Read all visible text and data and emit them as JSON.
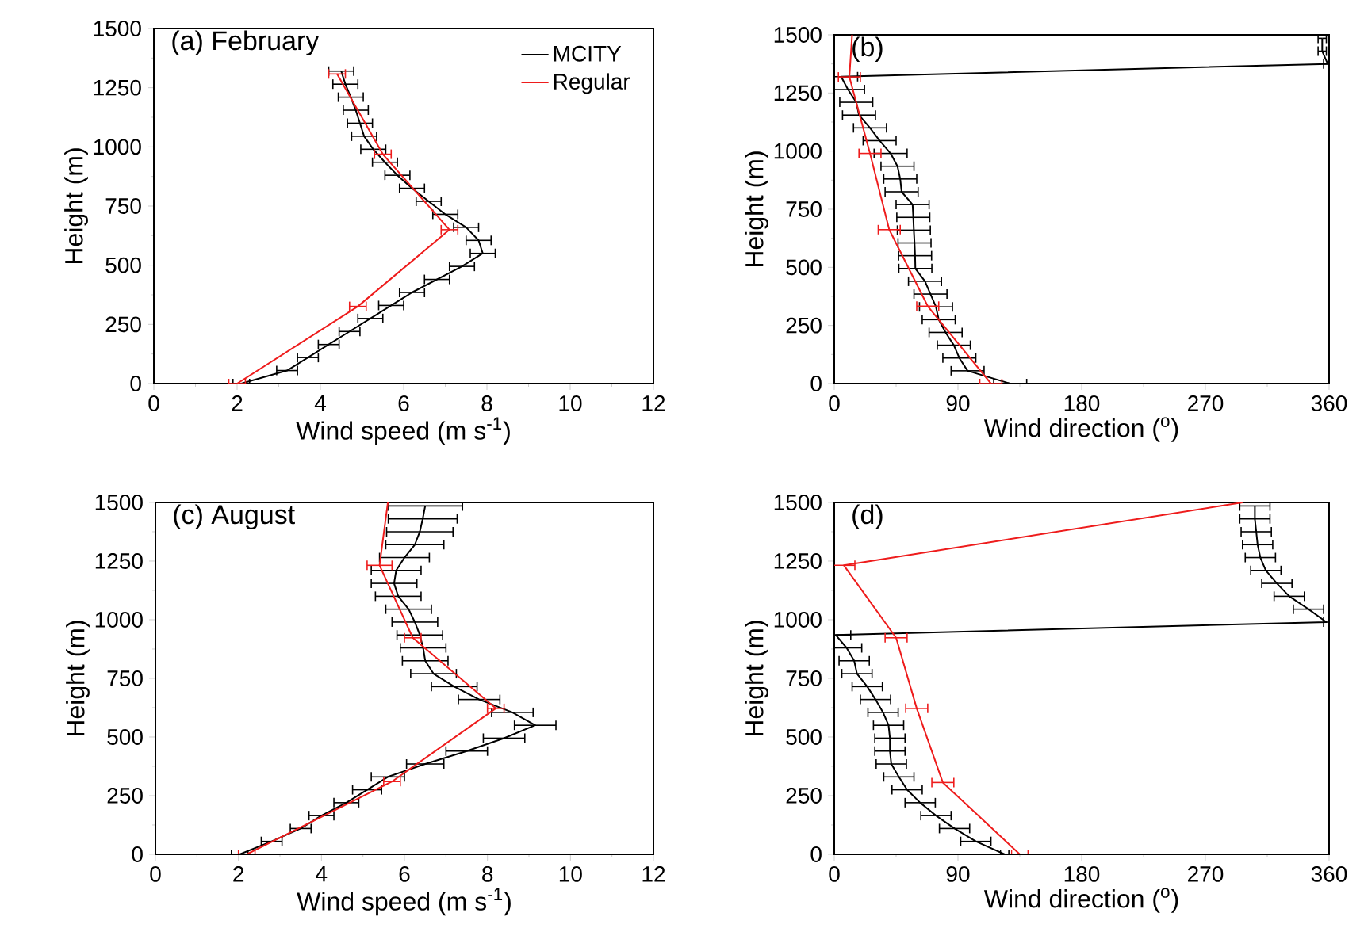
{
  "chart_data": [
    {
      "type": "line",
      "title": "(a) February",
      "xlabel": "Wind speed (m s$^{-1}$)",
      "ylabel": "Height (m)",
      "xlim": [
        0,
        12
      ],
      "xticks": [
        0,
        2,
        4,
        6,
        8,
        10,
        12
      ],
      "ylim": [
        0,
        1500
      ],
      "yticks": [
        0,
        250,
        500,
        750,
        1000,
        1250,
        1500
      ],
      "legend": "top right",
      "marker": "none",
      "line_style": "solid",
      "series": [
        {
          "name": "MCITY",
          "color": "#000000",
          "x": [
            2.1,
            3.2,
            3.7,
            4.2,
            4.7,
            5.2,
            5.7,
            6.2,
            6.8,
            7.4,
            7.9,
            7.8,
            7.5,
            7.0,
            6.6,
            6.2,
            5.85,
            5.55,
            5.27,
            5.05,
            4.95,
            4.85,
            4.73,
            4.6,
            4.5
          ],
          "values": [
            0,
            55,
            110,
            165,
            220,
            275,
            330,
            385,
            440,
            495,
            550,
            605,
            660,
            715,
            770,
            825,
            880,
            935,
            990,
            1045,
            1100,
            1155,
            1210,
            1265,
            1320
          ],
          "xerrors": [
            0.2,
            0.25,
            0.25,
            0.25,
            0.25,
            0.3,
            0.3,
            0.3,
            0.3,
            0.3,
            0.3,
            0.3,
            0.3,
            0.3,
            0.3,
            0.3,
            0.3,
            0.3,
            0.3,
            0.3,
            0.3,
            0.3,
            0.3,
            0.3,
            0.3
          ]
        },
        {
          "name": "Regular",
          "color": "#ee1c1c",
          "x": [
            2.0,
            4.9,
            7.1,
            5.5,
            4.4
          ],
          "values": [
            0,
            326,
            650,
            969,
            1308
          ],
          "xerrors": [
            0.2,
            0.2,
            0.2,
            0.2,
            0.2
          ]
        }
      ]
    },
    {
      "type": "line",
      "title": "(b)",
      "xlabel": "Wind direction ($^{o}$)",
      "ylabel": "Height (m)",
      "xlim": [
        0,
        360
      ],
      "xticks": [
        0,
        90,
        180,
        270,
        360
      ],
      "ylim": [
        0,
        1500
      ],
      "yticks": [
        0,
        250,
        500,
        750,
        1000,
        1250,
        1500
      ],
      "marker": "none",
      "line_style": "solid",
      "series": [
        {
          "color": "#000000",
          "x": [
            128,
            97,
            91,
            87,
            81,
            76,
            74,
            70,
            66,
            59,
            58.8,
            58.4,
            57.9,
            57.5,
            57,
            49,
            48,
            46,
            41,
            33,
            26,
            18,
            16,
            10,
            5,
            359,
            355,
            355
          ],
          "values": [
            0,
            55,
            110,
            165,
            220,
            275,
            330,
            385,
            440,
            495,
            550,
            605,
            660,
            715,
            770,
            825,
            880,
            935,
            990,
            1045,
            1100,
            1155,
            1210,
            1265,
            1320,
            1375,
            1430,
            1485
          ],
          "xerrors": [
            12,
            12,
            12,
            12,
            12,
            12,
            12,
            12,
            12,
            12,
            12,
            12,
            12,
            12,
            12,
            12,
            12,
            12,
            12,
            12,
            12,
            12,
            12,
            12,
            12,
            3,
            3,
            3
          ]
        },
        {
          "color": "#ee1c1c",
          "x": [
            114,
            68,
            40,
            26,
            11,
            13
          ],
          "values": [
            0,
            333,
            662,
            990,
            1319,
            1500
          ],
          "xerrors": [
            8,
            8,
            8,
            8,
            8,
            null
          ]
        }
      ]
    },
    {
      "type": "line",
      "title": "(c) August",
      "xlabel": "Wind speed (m s$^{-1}$)",
      "ylabel": "Height (m)",
      "xlim": [
        0,
        12
      ],
      "xticks": [
        0,
        2,
        4,
        6,
        8,
        10,
        12
      ],
      "ylim": [
        0,
        1500
      ],
      "yticks": [
        0,
        250,
        500,
        750,
        1000,
        1250,
        1500
      ],
      "marker": "none",
      "line_style": "solid",
      "series": [
        {
          "color": "#000000",
          "x": [
            2.03,
            2.8,
            3.5,
            4.0,
            4.6,
            5.1,
            5.6,
            6.5,
            7.5,
            8.4,
            9.15,
            8.6,
            7.8,
            7.2,
            6.7,
            6.5,
            6.45,
            6.37,
            6.25,
            6.1,
            5.85,
            5.75,
            5.8,
            6.0,
            6.25,
            6.37,
            6.44,
            6.5
          ],
          "values": [
            0,
            55,
            110,
            165,
            220,
            275,
            330,
            385,
            440,
            495,
            550,
            605,
            660,
            715,
            770,
            825,
            880,
            935,
            990,
            1045,
            1100,
            1155,
            1210,
            1265,
            1320,
            1375,
            1430,
            1485
          ],
          "xerrors": [
            0.2,
            0.25,
            0.25,
            0.3,
            0.3,
            0.35,
            0.4,
            0.45,
            0.5,
            0.5,
            0.5,
            0.5,
            0.5,
            0.55,
            0.55,
            0.55,
            0.55,
            0.55,
            0.55,
            0.55,
            0.55,
            0.55,
            0.6,
            0.6,
            0.7,
            0.8,
            0.83,
            0.9
          ]
        },
        {
          "color": "#ee1c1c",
          "x": [
            2.2,
            5.7,
            8.2,
            6.2,
            5.4,
            5.6
          ],
          "values": [
            0,
            310,
            622,
            923,
            1232,
            1500
          ],
          "xerrors": [
            0.2,
            0.2,
            0.2,
            0.2,
            0.3,
            null
          ]
        }
      ]
    },
    {
      "type": "line",
      "title": "(d)",
      "xlabel": "Wind direction ($^{o}$)",
      "ylabel": "Height (m)",
      "xlim": [
        0,
        360
      ],
      "xticks": [
        0,
        90,
        180,
        270,
        360
      ],
      "ylim": [
        0,
        1500
      ],
      "yticks": [
        0,
        250,
        500,
        750,
        1000,
        1250,
        1500
      ],
      "marker": "none",
      "line_style": "solid",
      "series": [
        {
          "color": "#000000",
          "x": [
            124,
            103,
            87.5,
            74,
            62.5,
            53,
            47,
            41.5,
            40.5,
            40.5,
            39.5,
            35.5,
            30,
            24,
            16.5,
            14.5,
            9,
            1,
            358,
            345,
            331,
            322,
            314,
            310,
            308,
            307,
            306,
            306
          ],
          "values": [
            0,
            55,
            110,
            165,
            220,
            275,
            330,
            385,
            440,
            495,
            550,
            605,
            660,
            715,
            770,
            825,
            880,
            935,
            990,
            1045,
            1100,
            1155,
            1210,
            1265,
            1320,
            1375,
            1430,
            1485
          ],
          "xerrors": [
            3,
            11,
            11,
            11,
            11,
            11,
            11,
            11,
            11,
            11,
            11,
            11,
            11,
            11,
            11,
            11,
            11,
            11,
            2,
            11,
            11,
            11,
            11,
            11,
            11,
            11,
            11,
            11
          ]
        },
        {
          "color": "#ee1c1c",
          "x": [
            135,
            79,
            60,
            45,
            7,
            297
          ],
          "values": [
            0,
            306,
            622,
            923,
            1232,
            1500
          ],
          "xerrors": [
            6,
            8,
            8,
            8,
            8,
            null
          ]
        }
      ]
    }
  ]
}
